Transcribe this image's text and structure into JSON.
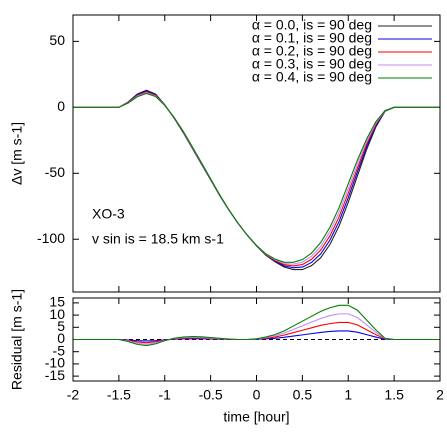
{
  "chart_data": [
    {
      "type": "line",
      "ylabel": "Δv [m s-1]",
      "annotations": [
        "XO-3",
        "v sin is = 18.5 km s-1"
      ],
      "legend": "upper right",
      "x": [
        -2,
        -1.5,
        -1.4,
        -1.3,
        -1.2,
        -1.1,
        -1.0,
        -0.9,
        -0.8,
        -0.7,
        -0.6,
        -0.5,
        -0.4,
        -0.3,
        -0.2,
        -0.1,
        0,
        0.1,
        0.2,
        0.3,
        0.4,
        0.5,
        0.6,
        0.7,
        0.8,
        0.9,
        1.0,
        1.1,
        1.2,
        1.3,
        1.4,
        1.5,
        2
      ],
      "series": [
        {
          "name": "α = 0.0, is = 90 deg",
          "color": "#222222",
          "values": [
            0,
            0,
            4,
            10,
            13,
            10,
            2,
            -8,
            -19,
            -31,
            -43,
            -55,
            -67,
            -78,
            -88,
            -97,
            -105,
            -112,
            -117,
            -121,
            -123,
            -123,
            -120,
            -114,
            -104,
            -90,
            -72,
            -52,
            -32,
            -15,
            -3,
            0,
            0
          ]
        },
        {
          "name": "α = 0.1, is = 90 deg",
          "color": "#0000ee",
          "values": [
            0,
            0,
            3.8,
            9.5,
            12.4,
            9.5,
            1.9,
            -7.9,
            -18.7,
            -30.7,
            -42.7,
            -54.8,
            -66.9,
            -77.9,
            -88,
            -97,
            -104.9,
            -111.7,
            -116.5,
            -120.1,
            -121.6,
            -121.1,
            -117.6,
            -111.1,
            -100.7,
            -86.5,
            -68.5,
            -49,
            -30,
            -14,
            -2.9,
            0,
            0
          ]
        },
        {
          "name": "α = 0.2, is = 90 deg",
          "color": "#ff0000",
          "values": [
            0,
            0,
            3.6,
            9,
            11.7,
            9.1,
            1.7,
            -7.7,
            -18.5,
            -30.4,
            -42.4,
            -54.6,
            -66.7,
            -77.9,
            -88,
            -97,
            -104.8,
            -111.5,
            -116,
            -119.2,
            -120.2,
            -119.2,
            -115.2,
            -108.2,
            -97.5,
            -83,
            -65,
            -46,
            -28,
            -13,
            -2.7,
            0,
            0
          ]
        },
        {
          "name": "α = 0.3, is = 90 deg",
          "color": "#c08cff",
          "values": [
            0,
            0,
            3.4,
            8.5,
            11.1,
            8.6,
            1.6,
            -7.6,
            -18.2,
            -30.1,
            -42.2,
            -54.4,
            -66.6,
            -77.8,
            -88,
            -97,
            -104.8,
            -111.2,
            -115.5,
            -118.4,
            -118.9,
            -117.4,
            -112.9,
            -105.4,
            -94.2,
            -79.5,
            -61.5,
            -43,
            -26,
            -12,
            -2.6,
            0,
            0
          ]
        },
        {
          "name": "α = 0.4, is = 90 deg",
          "color": "#008000",
          "values": [
            0,
            0,
            3.2,
            8,
            10.5,
            8.2,
            1.5,
            -7.5,
            -18,
            -29.8,
            -41.9,
            -54.2,
            -66.5,
            -77.8,
            -88,
            -97,
            -104.7,
            -111,
            -115,
            -117.5,
            -117.5,
            -115.5,
            -110.5,
            -102.5,
            -91,
            -76,
            -58,
            -40,
            -24,
            -11,
            -2.5,
            0,
            0
          ]
        }
      ],
      "xlim": [
        -2,
        2
      ],
      "xticks": [
        -2,
        -1.5,
        -1,
        -0.5,
        0,
        0.5,
        1,
        1.5,
        2
      ],
      "ylim": [
        -140,
        70
      ],
      "yticks": [
        -100,
        -50,
        0,
        50
      ]
    },
    {
      "type": "line",
      "ylabel": "Residual [m s-1]",
      "xlabel": "time [hour]",
      "x": [
        -2,
        -1.5,
        -1.4,
        -1.3,
        -1.2,
        -1.1,
        -1.0,
        -0.9,
        -0.8,
        -0.7,
        -0.6,
        -0.5,
        -0.4,
        -0.3,
        -0.2,
        -0.1,
        0,
        0.1,
        0.2,
        0.3,
        0.4,
        0.5,
        0.6,
        0.7,
        0.8,
        0.9,
        1.0,
        1.1,
        1.2,
        1.3,
        1.4,
        1.5,
        2
      ],
      "series": [
        {
          "color": "#000000",
          "linestyle": "dashed",
          "values": [
            0,
            0,
            0,
            0,
            0,
            0,
            0,
            0,
            0,
            0,
            0,
            0,
            0,
            0,
            0,
            0,
            0,
            0,
            0,
            0,
            0,
            0,
            0,
            0,
            0,
            0,
            0,
            0,
            0,
            0,
            0,
            0,
            0
          ]
        },
        {
          "color": "#0000ee",
          "values": [
            0,
            0,
            -0.2,
            -0.5,
            -0.6,
            -0.5,
            -0.1,
            0.1,
            0.3,
            0.3,
            0.3,
            0.2,
            0.1,
            0.1,
            0,
            0,
            0.1,
            0.3,
            0.5,
            0.9,
            1.4,
            1.9,
            2.4,
            2.9,
            3.3,
            3.5,
            3.5,
            3,
            2,
            1,
            0.1,
            0,
            0
          ]
        },
        {
          "color": "#ff0000",
          "values": [
            0,
            0,
            -0.4,
            -1,
            -1.3,
            -0.9,
            -0.3,
            0.3,
            0.5,
            0.6,
            0.6,
            0.4,
            0.3,
            0.1,
            0,
            0,
            0.2,
            0.5,
            1,
            1.8,
            2.8,
            3.8,
            4.8,
            5.8,
            6.5,
            7,
            7,
            6,
            4,
            2,
            0.3,
            0,
            0
          ]
        },
        {
          "color": "#c08cff",
          "values": [
            0,
            0,
            -0.6,
            -1.5,
            -1.9,
            -1.4,
            -0.4,
            0.4,
            0.8,
            0.9,
            0.8,
            0.6,
            0.4,
            0.2,
            0,
            0,
            0.2,
            0.8,
            1.5,
            2.6,
            4.1,
            5.6,
            7.1,
            8.6,
            9.8,
            10.5,
            10.5,
            9,
            6,
            3,
            0.4,
            0,
            0
          ]
        },
        {
          "color": "#008000",
          "values": [
            0,
            0,
            -0.8,
            -2,
            -2.5,
            -1.8,
            -0.5,
            0.5,
            1,
            1.2,
            1.1,
            0.8,
            0.5,
            0.2,
            0,
            0,
            0.3,
            1,
            2,
            3.5,
            5.5,
            7.5,
            9.5,
            11.5,
            13,
            14,
            14,
            12,
            8,
            4,
            0.5,
            0,
            0
          ]
        }
      ],
      "xlim": [
        -2,
        2
      ],
      "xticks": [
        -2,
        -1.5,
        -1,
        -0.5,
        0,
        0.5,
        1,
        1.5,
        2
      ],
      "ylim": [
        -17,
        17
      ],
      "yticks": [
        -15,
        -10,
        -5,
        0,
        5,
        10,
        15
      ]
    }
  ]
}
